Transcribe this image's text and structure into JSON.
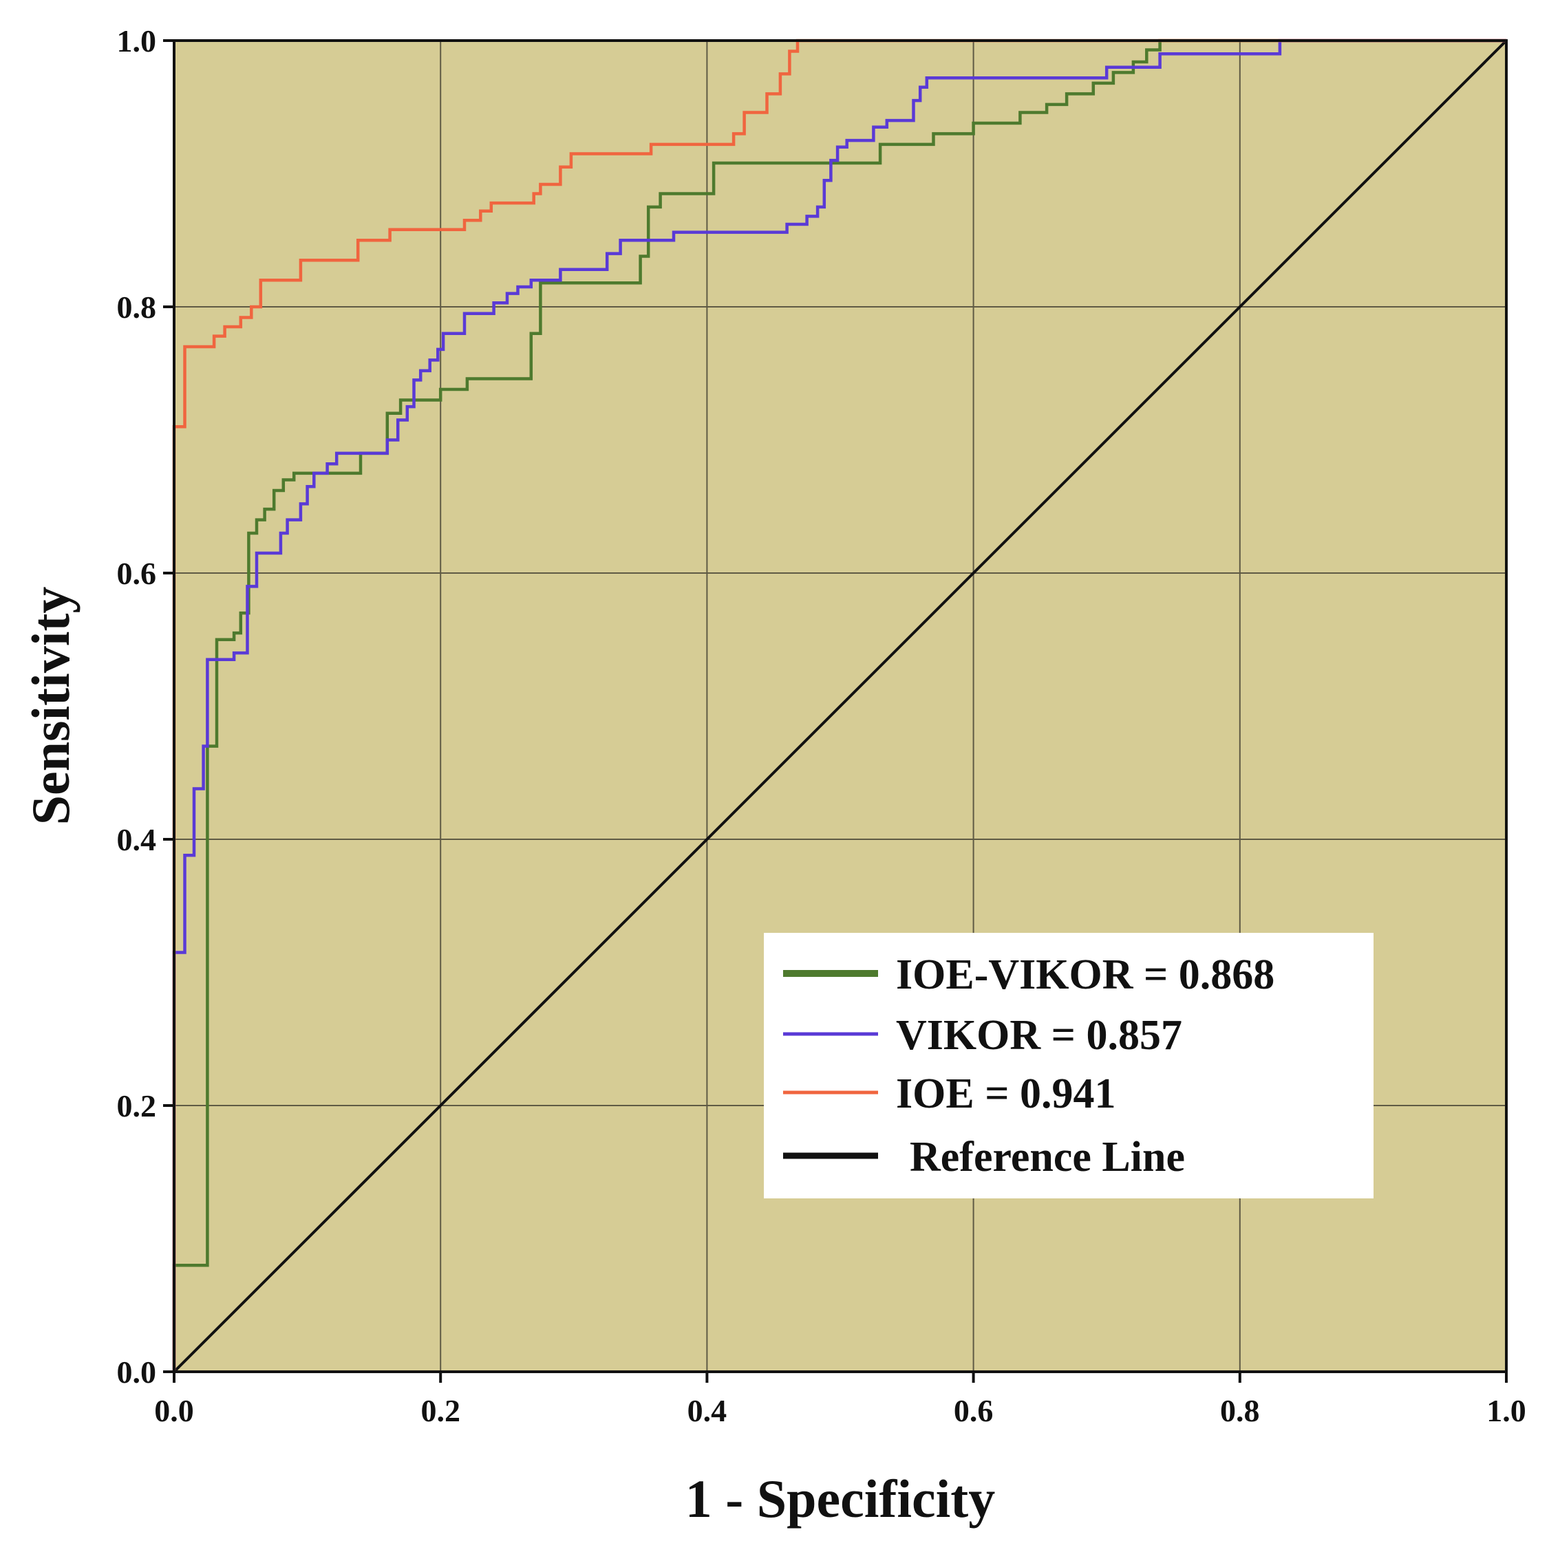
{
  "chart_data": {
    "type": "line",
    "title": "",
    "xlabel": "1 - Specificity",
    "ylabel": "Sensitivity",
    "xlim": [
      0.0,
      1.0
    ],
    "ylim": [
      0.0,
      1.0
    ],
    "xticks": [
      "0.0",
      "0.2",
      "0.4",
      "0.6",
      "0.8",
      "1.0"
    ],
    "yticks": [
      "0.0",
      "0.2",
      "0.4",
      "0.6",
      "0.8",
      "1.0"
    ],
    "grid": true,
    "legend_position": "bottom-right",
    "plot_background": "#d6cc95",
    "series": [
      {
        "name": "IOE-VIKOR",
        "legend_label": "IOE-VIKOR = 0.868",
        "auc": 0.868,
        "color": "#4e7a2e",
        "points": [
          [
            0.0,
            0.0
          ],
          [
            0.0,
            0.08
          ],
          [
            0.025,
            0.08
          ],
          [
            0.025,
            0.47
          ],
          [
            0.032,
            0.47
          ],
          [
            0.032,
            0.55
          ],
          [
            0.045,
            0.55
          ],
          [
            0.045,
            0.555
          ],
          [
            0.05,
            0.555
          ],
          [
            0.05,
            0.57
          ],
          [
            0.056,
            0.57
          ],
          [
            0.056,
            0.63
          ],
          [
            0.062,
            0.63
          ],
          [
            0.062,
            0.64
          ],
          [
            0.068,
            0.64
          ],
          [
            0.068,
            0.648
          ],
          [
            0.075,
            0.648
          ],
          [
            0.075,
            0.662
          ],
          [
            0.082,
            0.662
          ],
          [
            0.082,
            0.67
          ],
          [
            0.09,
            0.67
          ],
          [
            0.09,
            0.675
          ],
          [
            0.14,
            0.675
          ],
          [
            0.14,
            0.69
          ],
          [
            0.16,
            0.69
          ],
          [
            0.16,
            0.72
          ],
          [
            0.17,
            0.72
          ],
          [
            0.17,
            0.73
          ],
          [
            0.2,
            0.73
          ],
          [
            0.2,
            0.738
          ],
          [
            0.22,
            0.738
          ],
          [
            0.22,
            0.746
          ],
          [
            0.268,
            0.746
          ],
          [
            0.268,
            0.78
          ],
          [
            0.275,
            0.78
          ],
          [
            0.275,
            0.818
          ],
          [
            0.35,
            0.818
          ],
          [
            0.35,
            0.838
          ],
          [
            0.356,
            0.838
          ],
          [
            0.356,
            0.875
          ],
          [
            0.365,
            0.875
          ],
          [
            0.365,
            0.885
          ],
          [
            0.405,
            0.885
          ],
          [
            0.405,
            0.908
          ],
          [
            0.53,
            0.908
          ],
          [
            0.53,
            0.922
          ],
          [
            0.57,
            0.922
          ],
          [
            0.57,
            0.93
          ],
          [
            0.6,
            0.93
          ],
          [
            0.6,
            0.938
          ],
          [
            0.635,
            0.938
          ],
          [
            0.635,
            0.946
          ],
          [
            0.655,
            0.946
          ],
          [
            0.655,
            0.952
          ],
          [
            0.67,
            0.952
          ],
          [
            0.67,
            0.96
          ],
          [
            0.69,
            0.96
          ],
          [
            0.69,
            0.968
          ],
          [
            0.705,
            0.968
          ],
          [
            0.705,
            0.976
          ],
          [
            0.72,
            0.976
          ],
          [
            0.72,
            0.984
          ],
          [
            0.73,
            0.984
          ],
          [
            0.73,
            0.993
          ],
          [
            0.74,
            0.993
          ],
          [
            0.74,
            1.0
          ],
          [
            1.0,
            1.0
          ]
        ]
      },
      {
        "name": "VIKOR",
        "legend_label": "VIKOR = 0.857",
        "auc": 0.857,
        "color": "#5a3ad6",
        "points": [
          [
            0.0,
            0.0
          ],
          [
            0.0,
            0.315
          ],
          [
            0.008,
            0.315
          ],
          [
            0.008,
            0.388
          ],
          [
            0.015,
            0.388
          ],
          [
            0.015,
            0.438
          ],
          [
            0.022,
            0.438
          ],
          [
            0.022,
            0.47
          ],
          [
            0.025,
            0.47
          ],
          [
            0.025,
            0.535
          ],
          [
            0.045,
            0.535
          ],
          [
            0.045,
            0.54
          ],
          [
            0.055,
            0.54
          ],
          [
            0.055,
            0.59
          ],
          [
            0.062,
            0.59
          ],
          [
            0.062,
            0.615
          ],
          [
            0.08,
            0.615
          ],
          [
            0.08,
            0.63
          ],
          [
            0.085,
            0.63
          ],
          [
            0.085,
            0.64
          ],
          [
            0.095,
            0.64
          ],
          [
            0.095,
            0.652
          ],
          [
            0.1,
            0.652
          ],
          [
            0.1,
            0.665
          ],
          [
            0.105,
            0.665
          ],
          [
            0.105,
            0.675
          ],
          [
            0.115,
            0.675
          ],
          [
            0.115,
            0.682
          ],
          [
            0.122,
            0.682
          ],
          [
            0.122,
            0.69
          ],
          [
            0.16,
            0.69
          ],
          [
            0.16,
            0.7
          ],
          [
            0.168,
            0.7
          ],
          [
            0.168,
            0.715
          ],
          [
            0.175,
            0.715
          ],
          [
            0.175,
            0.725
          ],
          [
            0.18,
            0.725
          ],
          [
            0.18,
            0.745
          ],
          [
            0.185,
            0.745
          ],
          [
            0.185,
            0.752
          ],
          [
            0.192,
            0.752
          ],
          [
            0.192,
            0.76
          ],
          [
            0.198,
            0.76
          ],
          [
            0.198,
            0.768
          ],
          [
            0.202,
            0.768
          ],
          [
            0.202,
            0.78
          ],
          [
            0.218,
            0.78
          ],
          [
            0.218,
            0.795
          ],
          [
            0.24,
            0.795
          ],
          [
            0.24,
            0.803
          ],
          [
            0.25,
            0.803
          ],
          [
            0.25,
            0.81
          ],
          [
            0.258,
            0.81
          ],
          [
            0.258,
            0.815
          ],
          [
            0.268,
            0.815
          ],
          [
            0.268,
            0.82
          ],
          [
            0.29,
            0.82
          ],
          [
            0.29,
            0.828
          ],
          [
            0.325,
            0.828
          ],
          [
            0.325,
            0.84
          ],
          [
            0.335,
            0.84
          ],
          [
            0.335,
            0.85
          ],
          [
            0.375,
            0.85
          ],
          [
            0.375,
            0.856
          ],
          [
            0.445,
            0.856
          ],
          [
            0.445,
            0.856
          ],
          [
            0.46,
            0.856
          ],
          [
            0.46,
            0.862
          ],
          [
            0.475,
            0.862
          ],
          [
            0.475,
            0.868
          ],
          [
            0.483,
            0.868
          ],
          [
            0.483,
            0.875
          ],
          [
            0.488,
            0.875
          ],
          [
            0.488,
            0.895
          ],
          [
            0.493,
            0.895
          ],
          [
            0.493,
            0.91
          ],
          [
            0.498,
            0.91
          ],
          [
            0.498,
            0.92
          ],
          [
            0.505,
            0.92
          ],
          [
            0.505,
            0.925
          ],
          [
            0.525,
            0.925
          ],
          [
            0.525,
            0.935
          ],
          [
            0.535,
            0.935
          ],
          [
            0.535,
            0.94
          ],
          [
            0.555,
            0.94
          ],
          [
            0.555,
            0.955
          ],
          [
            0.56,
            0.955
          ],
          [
            0.56,
            0.965
          ],
          [
            0.565,
            0.965
          ],
          [
            0.565,
            0.972
          ],
          [
            0.7,
            0.972
          ],
          [
            0.7,
            0.98
          ],
          [
            0.74,
            0.98
          ],
          [
            0.74,
            0.99
          ],
          [
            0.83,
            0.99
          ],
          [
            0.83,
            1.0
          ],
          [
            1.0,
            1.0
          ]
        ]
      },
      {
        "name": "IOE",
        "legend_label": "IOE = 0.941",
        "auc": 0.941,
        "color": "#f0653f",
        "points": [
          [
            0.0,
            0.0
          ],
          [
            0.0,
            0.71
          ],
          [
            0.008,
            0.71
          ],
          [
            0.008,
            0.77
          ],
          [
            0.03,
            0.77
          ],
          [
            0.03,
            0.778
          ],
          [
            0.038,
            0.778
          ],
          [
            0.038,
            0.785
          ],
          [
            0.05,
            0.785
          ],
          [
            0.05,
            0.792
          ],
          [
            0.058,
            0.792
          ],
          [
            0.058,
            0.8
          ],
          [
            0.065,
            0.8
          ],
          [
            0.065,
            0.82
          ],
          [
            0.095,
            0.82
          ],
          [
            0.095,
            0.835
          ],
          [
            0.138,
            0.835
          ],
          [
            0.138,
            0.85
          ],
          [
            0.162,
            0.85
          ],
          [
            0.162,
            0.858
          ],
          [
            0.218,
            0.858
          ],
          [
            0.218,
            0.865
          ],
          [
            0.23,
            0.865
          ],
          [
            0.23,
            0.872
          ],
          [
            0.238,
            0.872
          ],
          [
            0.238,
            0.878
          ],
          [
            0.27,
            0.878
          ],
          [
            0.27,
            0.885
          ],
          [
            0.275,
            0.885
          ],
          [
            0.275,
            0.892
          ],
          [
            0.29,
            0.892
          ],
          [
            0.29,
            0.905
          ],
          [
            0.298,
            0.905
          ],
          [
            0.298,
            0.915
          ],
          [
            0.358,
            0.915
          ],
          [
            0.358,
            0.922
          ],
          [
            0.42,
            0.922
          ],
          [
            0.42,
            0.93
          ],
          [
            0.428,
            0.93
          ],
          [
            0.428,
            0.946
          ],
          [
            0.445,
            0.946
          ],
          [
            0.445,
            0.96
          ],
          [
            0.455,
            0.96
          ],
          [
            0.455,
            0.975
          ],
          [
            0.462,
            0.975
          ],
          [
            0.462,
            0.992
          ],
          [
            0.468,
            0.992
          ],
          [
            0.468,
            1.0
          ],
          [
            1.0,
            1.0
          ]
        ]
      },
      {
        "name": "Reference Line",
        "legend_label": "Reference Line",
        "color": "#111111",
        "points": [
          [
            0.0,
            0.0
          ],
          [
            1.0,
            1.0
          ]
        ]
      }
    ]
  }
}
